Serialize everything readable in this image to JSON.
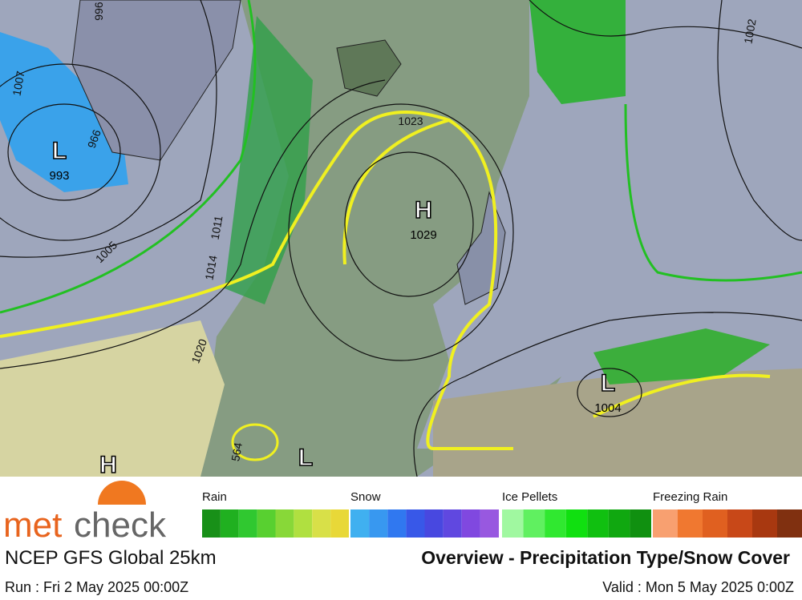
{
  "map": {
    "centers": [
      {
        "symbol": "L",
        "value": "993"
      },
      {
        "symbol": "H",
        "value": "1029"
      },
      {
        "symbol": "L",
        "value": "1004"
      },
      {
        "symbol": "H"
      },
      {
        "symbol": "L"
      }
    ],
    "isobar_labels": [
      "1023",
      "1020",
      "1005",
      "1011",
      "1014",
      "1007",
      "1002",
      "996",
      "966",
      "564"
    ]
  },
  "legend": [
    {
      "name": "Rain",
      "colors": [
        "#189018",
        "#20b020",
        "#30c830",
        "#58d030",
        "#88d838",
        "#b0e040",
        "#d8e048",
        "#e8d838"
      ]
    },
    {
      "name": "Snow",
      "colors": [
        "#40b0f0",
        "#3898f0",
        "#3078f0",
        "#3858e8",
        "#4848e0",
        "#6048e0",
        "#8048e0",
        "#9858e0"
      ]
    },
    {
      "name": "Ice Pellets",
      "colors": [
        "#a0f8a0",
        "#60f060",
        "#30e830",
        "#10e010",
        "#10c010",
        "#10a810",
        "#109010"
      ]
    },
    {
      "name": "Freezing Rain",
      "colors": [
        "#f8a070",
        "#f07830",
        "#e06020",
        "#c84818",
        "#a83810",
        "#803010"
      ]
    }
  ],
  "branding": {
    "logo_a": "met",
    "logo_b": "check"
  },
  "footer": {
    "model": "NCEP GFS Global 25km",
    "title": "Overview - Precipitation Type/Snow Cover",
    "run": "Run : Fri 2 May 2025 00:00Z",
    "valid": "Valid : Mon 5 May 2025 0:00Z"
  }
}
